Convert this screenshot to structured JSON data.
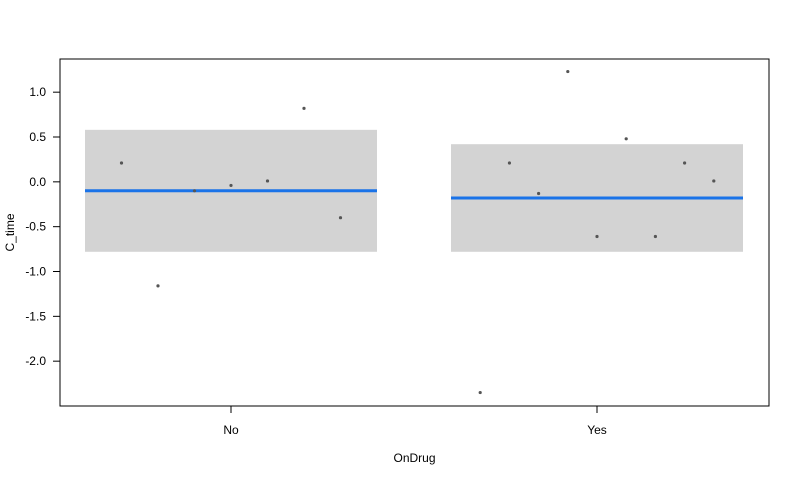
{
  "chart_data": {
    "type": "scatter",
    "xlabel": "OnDrug",
    "ylabel": "C_time",
    "categories": [
      "No",
      "Yes"
    ],
    "y_ticks": [
      1.0,
      0.5,
      0.0,
      -0.5,
      -1.0,
      -1.5,
      -2.0
    ],
    "y_tick_labels": [
      "1.0",
      "0.5",
      "0.0",
      "-0.5",
      "-1.0",
      "-1.5",
      "-2.0"
    ],
    "ylim": [
      -2.5,
      1.37
    ],
    "groups": [
      {
        "category": "No",
        "fit": -0.1,
        "band": [
          -0.78,
          0.58
        ],
        "points": [
          0.21,
          -1.16,
          -0.1,
          -0.04,
          0.01,
          0.82,
          -0.4
        ]
      },
      {
        "category": "Yes",
        "fit": -0.18,
        "band": [
          -0.78,
          0.42
        ],
        "points": [
          -2.35,
          0.21,
          -0.13,
          1.23,
          -0.61,
          0.48,
          -0.61,
          0.21,
          0.01
        ]
      }
    ],
    "colors": {
      "fit_line": "#1a73e8",
      "band": "#d3d3d3",
      "points": "#555555",
      "frame": "#000000"
    },
    "grid": false,
    "legend": "none"
  }
}
